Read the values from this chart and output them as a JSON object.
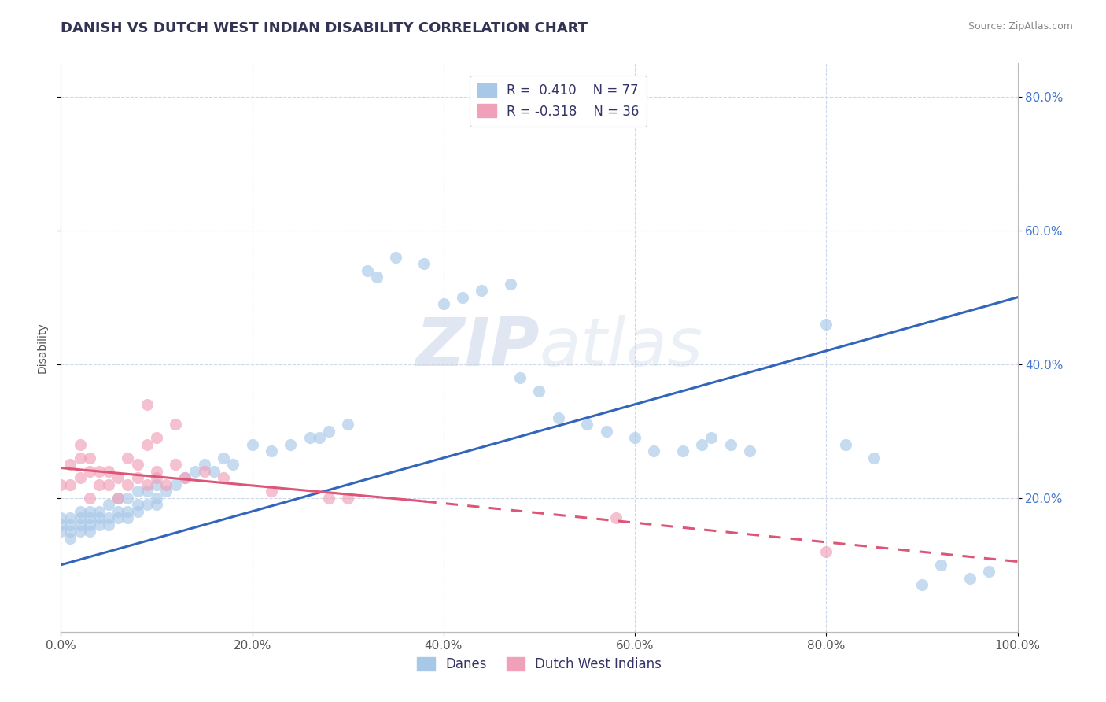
{
  "title": "DANISH VS DUTCH WEST INDIAN DISABILITY CORRELATION CHART",
  "source": "Source: ZipAtlas.com",
  "ylabel": "Disability",
  "xlim": [
    0.0,
    1.0
  ],
  "ylim": [
    0.0,
    0.85
  ],
  "x_ticks": [
    0.0,
    0.2,
    0.4,
    0.6,
    0.8,
    1.0
  ],
  "x_tick_labels": [
    "0.0%",
    "20.0%",
    "40.0%",
    "60.0%",
    "80.0%",
    "100.0%"
  ],
  "y_ticks": [
    0.2,
    0.4,
    0.6,
    0.8
  ],
  "y_tick_labels_right": [
    "20.0%",
    "40.0%",
    "60.0%",
    "80.0%"
  ],
  "danish_color": "#a8c8e8",
  "dutch_color": "#f0a0b8",
  "danish_line_color": "#3366bb",
  "dutch_line_color": "#dd5577",
  "R_danish": 0.41,
  "N_danish": 77,
  "R_dutch": -0.318,
  "N_dutch": 36,
  "legend_labels": [
    "Danes",
    "Dutch West Indians"
  ],
  "watermark": "ZIPatlas",
  "title_fontsize": 13,
  "label_fontsize": 10,
  "tick_fontsize": 11,
  "background_color": "#ffffff",
  "grid_color": "#c8d4e8",
  "danish_trendline": [
    0.0,
    0.1,
    1.0,
    0.5
  ],
  "dutch_trendline_solid": [
    0.0,
    0.245,
    0.38,
    0.195
  ],
  "dutch_trendline_dashed": [
    0.38,
    0.195,
    1.0,
    0.105
  ],
  "danish_scatter_x": [
    0.0,
    0.0,
    0.0,
    0.01,
    0.01,
    0.01,
    0.01,
    0.02,
    0.02,
    0.02,
    0.02,
    0.03,
    0.03,
    0.03,
    0.03,
    0.04,
    0.04,
    0.04,
    0.05,
    0.05,
    0.05,
    0.06,
    0.06,
    0.06,
    0.07,
    0.07,
    0.07,
    0.08,
    0.08,
    0.08,
    0.09,
    0.09,
    0.1,
    0.1,
    0.1,
    0.11,
    0.12,
    0.13,
    0.14,
    0.15,
    0.16,
    0.17,
    0.18,
    0.2,
    0.22,
    0.24,
    0.26,
    0.27,
    0.28,
    0.3,
    0.32,
    0.33,
    0.35,
    0.38,
    0.4,
    0.42,
    0.44,
    0.47,
    0.48,
    0.5,
    0.52,
    0.55,
    0.57,
    0.6,
    0.62,
    0.65,
    0.67,
    0.68,
    0.7,
    0.72,
    0.8,
    0.82,
    0.85,
    0.9,
    0.92,
    0.95,
    0.97
  ],
  "danish_scatter_y": [
    0.15,
    0.16,
    0.17,
    0.14,
    0.15,
    0.16,
    0.17,
    0.15,
    0.16,
    0.17,
    0.18,
    0.15,
    0.16,
    0.17,
    0.18,
    0.16,
    0.17,
    0.18,
    0.16,
    0.17,
    0.19,
    0.17,
    0.18,
    0.2,
    0.17,
    0.18,
    0.2,
    0.18,
    0.19,
    0.21,
    0.19,
    0.21,
    0.19,
    0.2,
    0.22,
    0.21,
    0.22,
    0.23,
    0.24,
    0.25,
    0.24,
    0.26,
    0.25,
    0.28,
    0.27,
    0.28,
    0.29,
    0.29,
    0.3,
    0.31,
    0.54,
    0.53,
    0.56,
    0.55,
    0.49,
    0.5,
    0.51,
    0.52,
    0.38,
    0.36,
    0.32,
    0.31,
    0.3,
    0.29,
    0.27,
    0.27,
    0.28,
    0.29,
    0.28,
    0.27,
    0.46,
    0.28,
    0.26,
    0.07,
    0.1,
    0.08,
    0.09
  ],
  "dutch_scatter_x": [
    0.0,
    0.01,
    0.01,
    0.02,
    0.02,
    0.02,
    0.03,
    0.03,
    0.03,
    0.04,
    0.04,
    0.05,
    0.05,
    0.06,
    0.06,
    0.07,
    0.07,
    0.08,
    0.08,
    0.09,
    0.1,
    0.1,
    0.11,
    0.12,
    0.13,
    0.15,
    0.17,
    0.22,
    0.28,
    0.3,
    0.58,
    0.8,
    0.09,
    0.12,
    0.1,
    0.09
  ],
  "dutch_scatter_y": [
    0.22,
    0.22,
    0.25,
    0.23,
    0.26,
    0.28,
    0.24,
    0.26,
    0.2,
    0.22,
    0.24,
    0.22,
    0.24,
    0.2,
    0.23,
    0.22,
    0.26,
    0.23,
    0.25,
    0.22,
    0.23,
    0.24,
    0.22,
    0.25,
    0.23,
    0.24,
    0.23,
    0.21,
    0.2,
    0.2,
    0.17,
    0.12,
    0.34,
    0.31,
    0.29,
    0.28
  ]
}
